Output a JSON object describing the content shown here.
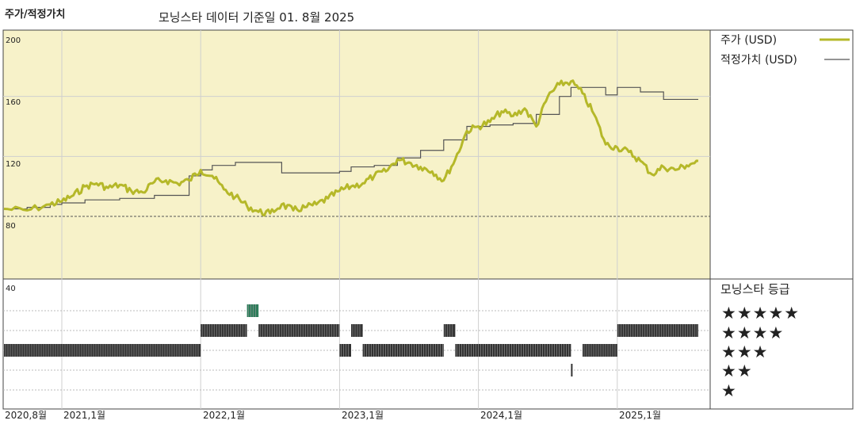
{
  "header": {
    "title": "주가/적정가치",
    "subtitle": "모닝스타 데이터 기준일 01. 8월 2025"
  },
  "colors": {
    "price": "#b5b829",
    "fair_value": "#555555",
    "panel_bg": "#f7f2c9",
    "bar": "#333333",
    "highlight_bar": "#2e7d5b"
  },
  "chart_data": [
    {
      "type": "line",
      "title": "주가/적정가치",
      "y_ticks": [
        "200",
        "160",
        "120",
        "80"
      ],
      "ylim": [
        76,
        200
      ],
      "grid": true,
      "legend_position": "top-right",
      "x_tick_labels": [
        "2020,8월",
        "2021,1월",
        "2022,1월",
        "2023,1월",
        "2024,1월",
        "2025,1월"
      ],
      "series": [
        {
          "name": "주가 (USD)",
          "style": "thick-olive",
          "points": [
            [
              "2020-08",
              85
            ],
            [
              "2020-10",
              84
            ],
            [
              "2020-12",
              88
            ],
            [
              "2021-01",
              90
            ],
            [
              "2021-02",
              94
            ],
            [
              "2021-03",
              100
            ],
            [
              "2021-04",
              102
            ],
            [
              "2021-05",
              99
            ],
            [
              "2021-06",
              101
            ],
            [
              "2021-07",
              97
            ],
            [
              "2021-08",
              96
            ],
            [
              "2021-09",
              103
            ],
            [
              "2021-10",
              104
            ],
            [
              "2021-11",
              102
            ],
            [
              "2021-12",
              104
            ],
            [
              "2022-01",
              111
            ],
            [
              "2022-02",
              107
            ],
            [
              "2022-03",
              98
            ],
            [
              "2022-04",
              93
            ],
            [
              "2022-05",
              87
            ],
            [
              "2022-06",
              83
            ],
            [
              "2022-07",
              82
            ],
            [
              "2022-08",
              88
            ],
            [
              "2022-09",
              84
            ],
            [
              "2022-10",
              86
            ],
            [
              "2022-11",
              88
            ],
            [
              "2022-12",
              92
            ],
            [
              "2023-01",
              97
            ],
            [
              "2023-02",
              100
            ],
            [
              "2023-03",
              102
            ],
            [
              "2023-04",
              107
            ],
            [
              "2023-05",
              110
            ],
            [
              "2023-06",
              118
            ],
            [
              "2023-07",
              116
            ],
            [
              "2023-08",
              113
            ],
            [
              "2023-09",
              110
            ],
            [
              "2023-10",
              104
            ],
            [
              "2023-11",
              118
            ],
            [
              "2023-12",
              137
            ],
            [
              "2024-01",
              140
            ],
            [
              "2024-02",
              143
            ],
            [
              "2024-03",
              150
            ],
            [
              "2024-04",
              147
            ],
            [
              "2024-05",
              152
            ],
            [
              "2024-06",
              140
            ],
            [
              "2024-07",
              160
            ],
            [
              "2024-08",
              168
            ],
            [
              "2024-09",
              170
            ],
            [
              "2024-10",
              162
            ],
            [
              "2024-11",
              148
            ],
            [
              "2024-12",
              128
            ],
            [
              "2025-01",
              126
            ],
            [
              "2025-02",
              123
            ],
            [
              "2025-03",
              117
            ],
            [
              "2025-04",
              108
            ],
            [
              "2025-05",
              113
            ],
            [
              "2025-06",
              111
            ],
            [
              "2025-07",
              114
            ],
            [
              "2025-08",
              117
            ]
          ]
        },
        {
          "name": "적정가치 (USD)",
          "style": "thin-gray-step",
          "points": [
            [
              "2020-08",
              85
            ],
            [
              "2020-10",
              86
            ],
            [
              "2020-12",
              88
            ],
            [
              "2021-01",
              89
            ],
            [
              "2021-03",
              91
            ],
            [
              "2021-06",
              92
            ],
            [
              "2021-09",
              94
            ],
            [
              "2021-12",
              107
            ],
            [
              "2022-01",
              111
            ],
            [
              "2022-02",
              114
            ],
            [
              "2022-04",
              116
            ],
            [
              "2022-08",
              109
            ],
            [
              "2023-01",
              110
            ],
            [
              "2023-02",
              113
            ],
            [
              "2023-04",
              114
            ],
            [
              "2023-06",
              119
            ],
            [
              "2023-08",
              124
            ],
            [
              "2023-10",
              131
            ],
            [
              "2023-12",
              140
            ],
            [
              "2024-02",
              141
            ],
            [
              "2024-04",
              142
            ],
            [
              "2024-06",
              148
            ],
            [
              "2024-08",
              160
            ],
            [
              "2024-09",
              166
            ],
            [
              "2024-12",
              161
            ],
            [
              "2025-01",
              166
            ],
            [
              "2025-03",
              163
            ],
            [
              "2025-05",
              158
            ]
          ]
        }
      ]
    },
    {
      "type": "bar",
      "title": "모닝스타 등급",
      "y_ticks": [
        "40"
      ],
      "grid": true,
      "categories": [
        "★★★★★",
        "★★★★",
        "★★★",
        "★★",
        "★"
      ],
      "rating_periods": [
        {
          "rating": 3,
          "start": "2020-08",
          "end": "2022-01"
        },
        {
          "rating": 4,
          "start": "2022-01",
          "end": "2022-05"
        },
        {
          "rating": 5,
          "start": "2022-05",
          "end": "2022-06"
        },
        {
          "rating": 4,
          "start": "2022-06",
          "end": "2023-01"
        },
        {
          "rating": 3,
          "start": "2023-01",
          "end": "2023-02"
        },
        {
          "rating": 4,
          "start": "2023-02",
          "end": "2023-03"
        },
        {
          "rating": 3,
          "start": "2023-03",
          "end": "2023-10"
        },
        {
          "rating": 4,
          "start": "2023-10",
          "end": "2023-11"
        },
        {
          "rating": 3,
          "start": "2023-11",
          "end": "2024-09"
        },
        {
          "rating": 2,
          "start": "2024-09",
          "end": "2024-10"
        },
        {
          "rating": 3,
          "start": "2024-10",
          "end": "2025-01"
        },
        {
          "rating": 4,
          "start": "2025-01",
          "end": "2025-08"
        }
      ]
    }
  ]
}
